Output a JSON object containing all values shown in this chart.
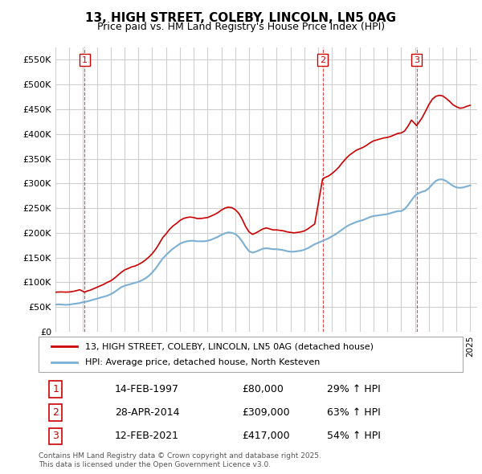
{
  "title": "13, HIGH STREET, COLEBY, LINCOLN, LN5 0AG",
  "subtitle": "Price paid vs. HM Land Registry's House Price Index (HPI)",
  "ylim": [
    0,
    575000
  ],
  "yticks": [
    0,
    50000,
    100000,
    150000,
    200000,
    250000,
    300000,
    350000,
    400000,
    450000,
    500000,
    550000
  ],
  "xlim_start": 1995.0,
  "xlim_end": 2025.5,
  "background_color": "#ffffff",
  "grid_color": "#d0d0d0",
  "sale_color": "#cc0000",
  "hpi_color": "#7bafd4",
  "legend_sale_label": "13, HIGH STREET, COLEBY, LINCOLN, LN5 0AG (detached house)",
  "legend_hpi_label": "HPI: Average price, detached house, North Kesteven",
  "transactions": [
    {
      "num": 1,
      "date_label": "14-FEB-1997",
      "price": 80000,
      "pct": "29%",
      "x": 1997.12
    },
    {
      "num": 2,
      "date_label": "28-APR-2014",
      "price": 309000,
      "pct": "63%",
      "x": 2014.32
    },
    {
      "num": 3,
      "date_label": "12-FEB-2021",
      "price": 417000,
      "pct": "54%",
      "x": 2021.12
    }
  ],
  "footer": "Contains HM Land Registry data © Crown copyright and database right 2025.\nThis data is licensed under the Open Government Licence v3.0.",
  "hpi_data_x": [
    1995.0,
    1995.25,
    1995.5,
    1995.75,
    1996.0,
    1996.25,
    1996.5,
    1996.75,
    1997.0,
    1997.25,
    1997.5,
    1997.75,
    1998.0,
    1998.25,
    1998.5,
    1998.75,
    1999.0,
    1999.25,
    1999.5,
    1999.75,
    2000.0,
    2000.25,
    2000.5,
    2000.75,
    2001.0,
    2001.25,
    2001.5,
    2001.75,
    2002.0,
    2002.25,
    2002.5,
    2002.75,
    2003.0,
    2003.25,
    2003.5,
    2003.75,
    2004.0,
    2004.25,
    2004.5,
    2004.75,
    2005.0,
    2005.25,
    2005.5,
    2005.75,
    2006.0,
    2006.25,
    2006.5,
    2006.75,
    2007.0,
    2007.25,
    2007.5,
    2007.75,
    2008.0,
    2008.25,
    2008.5,
    2008.75,
    2009.0,
    2009.25,
    2009.5,
    2009.75,
    2010.0,
    2010.25,
    2010.5,
    2010.75,
    2011.0,
    2011.25,
    2011.5,
    2011.75,
    2012.0,
    2012.25,
    2012.5,
    2012.75,
    2013.0,
    2013.25,
    2013.5,
    2013.75,
    2014.0,
    2014.25,
    2014.5,
    2014.75,
    2015.0,
    2015.25,
    2015.5,
    2015.75,
    2016.0,
    2016.25,
    2016.5,
    2016.75,
    2017.0,
    2017.25,
    2017.5,
    2017.75,
    2018.0,
    2018.25,
    2018.5,
    2018.75,
    2019.0,
    2019.25,
    2019.5,
    2019.75,
    2020.0,
    2020.25,
    2020.5,
    2020.75,
    2021.0,
    2021.25,
    2021.5,
    2021.75,
    2022.0,
    2022.25,
    2022.5,
    2022.75,
    2023.0,
    2023.25,
    2023.5,
    2023.75,
    2024.0,
    2024.25,
    2024.5,
    2024.75,
    2025.0
  ],
  "hpi_data_y": [
    55000,
    55500,
    55000,
    54500,
    55000,
    56000,
    57000,
    58000,
    60000,
    61000,
    63000,
    65000,
    67000,
    69000,
    71000,
    73000,
    76000,
    80000,
    85000,
    90000,
    93000,
    95000,
    97000,
    99000,
    101000,
    104000,
    108000,
    113000,
    120000,
    128000,
    138000,
    148000,
    155000,
    162000,
    168000,
    173000,
    178000,
    181000,
    183000,
    184000,
    184000,
    183000,
    183000,
    183000,
    184000,
    186000,
    189000,
    192000,
    196000,
    199000,
    201000,
    200000,
    198000,
    192000,
    183000,
    172000,
    163000,
    160000,
    162000,
    165000,
    168000,
    169000,
    168000,
    167000,
    167000,
    166000,
    165000,
    163000,
    162000,
    162000,
    163000,
    164000,
    166000,
    169000,
    173000,
    177000,
    180000,
    183000,
    186000,
    189000,
    193000,
    197000,
    202000,
    207000,
    212000,
    216000,
    219000,
    222000,
    224000,
    226000,
    229000,
    232000,
    234000,
    235000,
    236000,
    237000,
    238000,
    240000,
    242000,
    244000,
    244000,
    248000,
    256000,
    266000,
    275000,
    280000,
    283000,
    285000,
    290000,
    298000,
    305000,
    308000,
    308000,
    305000,
    300000,
    295000,
    292000,
    291000,
    292000,
    294000,
    296000
  ],
  "sale_data_x": [
    1995.0,
    1995.25,
    1995.5,
    1995.75,
    1996.0,
    1996.25,
    1996.5,
    1996.75,
    1997.12,
    1997.25,
    1997.5,
    1997.75,
    1998.0,
    1998.25,
    1998.5,
    1998.75,
    1999.0,
    1999.25,
    1999.5,
    1999.75,
    2000.0,
    2000.25,
    2000.5,
    2000.75,
    2001.0,
    2001.25,
    2001.5,
    2001.75,
    2002.0,
    2002.25,
    2002.5,
    2002.75,
    2003.0,
    2003.25,
    2003.5,
    2003.75,
    2004.0,
    2004.25,
    2004.5,
    2004.75,
    2005.0,
    2005.25,
    2005.5,
    2005.75,
    2006.0,
    2006.25,
    2006.5,
    2006.75,
    2007.0,
    2007.25,
    2007.5,
    2007.75,
    2008.0,
    2008.25,
    2008.5,
    2008.75,
    2009.0,
    2009.25,
    2009.5,
    2009.75,
    2010.0,
    2010.25,
    2010.5,
    2010.75,
    2011.0,
    2011.25,
    2011.5,
    2011.75,
    2012.0,
    2012.25,
    2012.5,
    2012.75,
    2013.0,
    2013.25,
    2013.5,
    2013.75,
    2014.32,
    2014.5,
    2014.75,
    2015.0,
    2015.25,
    2015.5,
    2015.75,
    2016.0,
    2016.25,
    2016.5,
    2016.75,
    2017.0,
    2017.25,
    2017.5,
    2017.75,
    2018.0,
    2018.25,
    2018.5,
    2018.75,
    2019.0,
    2019.25,
    2019.5,
    2019.75,
    2020.0,
    2020.25,
    2020.5,
    2020.75,
    2021.12,
    2021.25,
    2021.5,
    2021.75,
    2022.0,
    2022.25,
    2022.5,
    2022.75,
    2023.0,
    2023.25,
    2023.5,
    2023.75,
    2024.0,
    2024.25,
    2024.5,
    2024.75,
    2025.0
  ],
  "sale_data_y": [
    80000,
    80500,
    80500,
    80200,
    80500,
    81500,
    83000,
    85000,
    80000,
    82000,
    84000,
    87000,
    90000,
    93000,
    96000,
    100000,
    103000,
    108000,
    114000,
    120000,
    125000,
    128000,
    131000,
    133000,
    136000,
    140000,
    145000,
    151000,
    158000,
    167000,
    178000,
    190000,
    198000,
    207000,
    214000,
    219000,
    225000,
    229000,
    231000,
    232000,
    231000,
    229000,
    229000,
    230000,
    231000,
    234000,
    237000,
    241000,
    246000,
    250000,
    252000,
    251000,
    247000,
    240000,
    228000,
    213000,
    202000,
    197000,
    200000,
    204000,
    208000,
    210000,
    208000,
    206000,
    206000,
    205000,
    204000,
    202000,
    201000,
    200000,
    201000,
    202000,
    204000,
    208000,
    213000,
    218000,
    309000,
    312000,
    315000,
    320000,
    326000,
    333000,
    342000,
    350000,
    357000,
    362000,
    367000,
    370000,
    373000,
    377000,
    382000,
    386000,
    388000,
    390000,
    392000,
    393000,
    395000,
    398000,
    401000,
    402000,
    406000,
    416000,
    428000,
    417000,
    422000,
    432000,
    445000,
    459000,
    470000,
    476000,
    478000,
    477000,
    472000,
    466000,
    459000,
    455000,
    452000,
    453000,
    456000,
    458000
  ]
}
